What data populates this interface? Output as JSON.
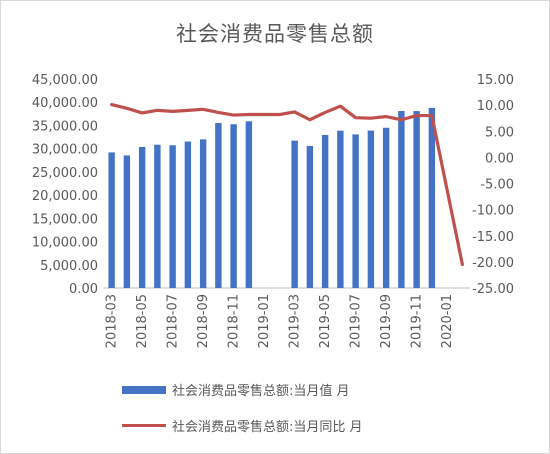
{
  "chart_data": {
    "type": "bar+line",
    "title": "社会消费品零售总额",
    "categories": [
      "2018-03",
      "2018-04",
      "2018-05",
      "2018-06",
      "2018-07",
      "2018-08",
      "2018-09",
      "2018-10",
      "2018-11",
      "2018-12",
      "2019-01",
      "2019-02",
      "2019-03",
      "2019-04",
      "2019-05",
      "2019-06",
      "2019-07",
      "2019-08",
      "2019-09",
      "2019-10",
      "2019-11",
      "2019-12",
      "2020-01",
      "2020-02"
    ],
    "x_tick_labels": [
      "2018-03",
      "2018-05",
      "2018-07",
      "2018-09",
      "2018-11",
      "2019-01",
      "2019-03",
      "2019-05",
      "2019-07",
      "2019-09",
      "2019-11",
      "2020-01"
    ],
    "series": [
      {
        "name": "社会消费品零售总额:当月值 月",
        "type": "bar",
        "axis": "left",
        "color": "#4472c4",
        "values": [
          29194,
          28542,
          30359,
          30842,
          30734,
          31542,
          32005,
          35534,
          35260,
          35893,
          null,
          null,
          31726,
          30586,
          32956,
          33878,
          33073,
          33896,
          34495,
          38104,
          38094,
          38777,
          null,
          null
        ]
      },
      {
        "name": "社会消费品零售总额:当月同比 月",
        "type": "line",
        "axis": "right",
        "color": "#c0504d",
        "values": [
          10.1,
          9.4,
          8.5,
          9.0,
          8.8,
          9.0,
          9.2,
          8.6,
          8.1,
          8.2,
          8.2,
          8.2,
          8.7,
          7.2,
          8.6,
          9.8,
          7.6,
          7.5,
          7.8,
          7.2,
          8.0,
          8.0,
          null,
          -20.5
        ]
      }
    ],
    "y_left": {
      "min": 0,
      "max": 45000,
      "step": 5000,
      "tick_labels": [
        "0.00",
        "5,000.00",
        "10,000.00",
        "15,000.00",
        "20,000.00",
        "25,000.00",
        "30,000.00",
        "35,000.00",
        "40,000.00",
        "45,000.00"
      ]
    },
    "y_right": {
      "min": -25,
      "max": 15,
      "step": 5,
      "tick_labels": [
        "-25.00",
        "-20.00",
        "-15.00",
        "-10.00",
        "-5.00",
        "0.00",
        "5.00",
        "10.00",
        "15.00"
      ]
    },
    "legend_position": "bottom",
    "grid": false
  }
}
